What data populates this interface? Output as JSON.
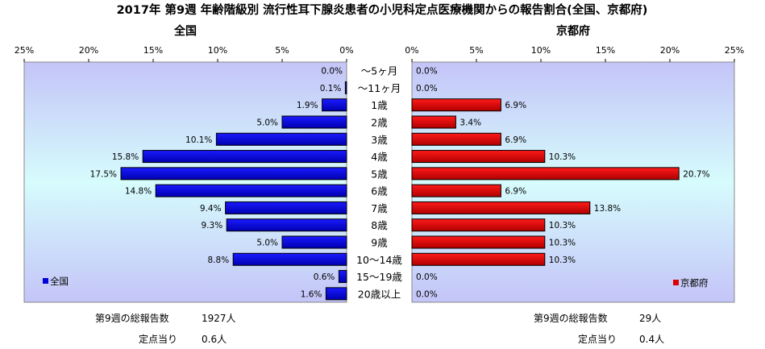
{
  "chart_data": {
    "type": "bar",
    "title": "2017年 第9週 年齢階級別 流行性耳下腺炎患者の小児科定点医療機関からの報告割合(全国、京都府)",
    "categories": [
      "～5ヶ月",
      "～11ヶ月",
      "1歳",
      "2歳",
      "3歳",
      "4歳",
      "5歳",
      "6歳",
      "7歳",
      "8歳",
      "9歳",
      "10～14歳",
      "15～19歳",
      "20歳以上"
    ],
    "axis_ticks": [
      "25%",
      "20%",
      "15%",
      "10%",
      "5%",
      "0%"
    ],
    "axis_ticks_right": [
      "0%",
      "5%",
      "10%",
      "15%",
      "20%",
      "25%"
    ],
    "xlim": [
      0,
      25
    ],
    "series": [
      {
        "name": "全国",
        "panel_label": "全国",
        "legend_label": "全国",
        "color": "#0000dd",
        "values": [
          0.0,
          0.1,
          1.9,
          5.0,
          10.1,
          15.8,
          17.5,
          14.8,
          9.4,
          9.3,
          5.0,
          8.8,
          0.6,
          1.6
        ],
        "labels": [
          "0.0%",
          "0.1%",
          "1.9%",
          "5.0%",
          "10.1%",
          "15.8%",
          "17.5%",
          "14.8%",
          "9.4%",
          "9.3%",
          "5.0%",
          "8.8%",
          "0.6%",
          "1.6%"
        ]
      },
      {
        "name": "京都府",
        "panel_label": "京都府",
        "legend_label": "京都府",
        "color": "#dd0000",
        "values": [
          0.0,
          0.0,
          6.9,
          3.4,
          6.9,
          10.3,
          20.7,
          6.9,
          13.8,
          10.3,
          10.3,
          10.3,
          0.0,
          0.0
        ],
        "labels": [
          "0.0%",
          "0.0%",
          "6.9%",
          "3.4%",
          "6.9%",
          "10.3%",
          "20.7%",
          "6.9%",
          "13.8%",
          "10.3%",
          "10.3%",
          "10.3%",
          "0.0%",
          "0.0%"
        ]
      }
    ],
    "legend_position": "bottom-left / bottom-right",
    "grid": false
  },
  "footer": {
    "left": {
      "total_label": "第9週の総報告数",
      "total_value": "1927人",
      "per_site_label": "定点当り",
      "per_site_value": "0.6人"
    },
    "right": {
      "total_label": "第9週の総報告数",
      "total_value": "29人",
      "per_site_label": "定点当り",
      "per_site_value": "0.4人"
    }
  }
}
